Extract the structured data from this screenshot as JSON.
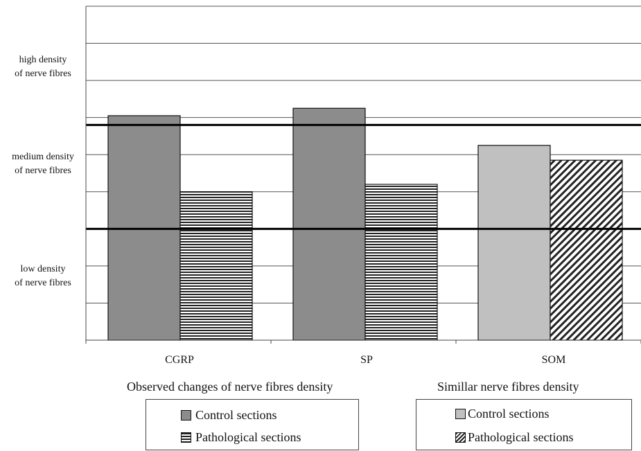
{
  "chart_data": {
    "type": "bar",
    "categories": [
      "CGRP",
      "SP",
      "SOM"
    ],
    "series": [
      {
        "name": "Control sections",
        "values": [
          6.05,
          6.25,
          5.25
        ]
      },
      {
        "name": "Pathological sections",
        "values": [
          4.0,
          4.2,
          4.85
        ]
      }
    ],
    "ylim": [
      0,
      9
    ],
    "y_level_labels": [
      {
        "line1": "high density",
        "line2": "of nerve fibres"
      },
      {
        "line1": "medium density",
        "line2": "of nerve fibres"
      },
      {
        "line1": "low density",
        "line2": "of nerve fibres"
      }
    ],
    "threshold_lines": [
      5.8,
      3.0
    ],
    "grid": true,
    "colors": {
      "control_observed": "#8c8c8c",
      "control_similar": "#c0c0c0",
      "edge": "#111111"
    },
    "groups": [
      {
        "title": "Observed changes of nerve fibres density",
        "legend": [
          "Control sections",
          "Pathological sections"
        ]
      },
      {
        "title": "Simillar nerve fibres density",
        "legend": [
          "Control sections",
          "Pathological sections"
        ]
      }
    ]
  }
}
